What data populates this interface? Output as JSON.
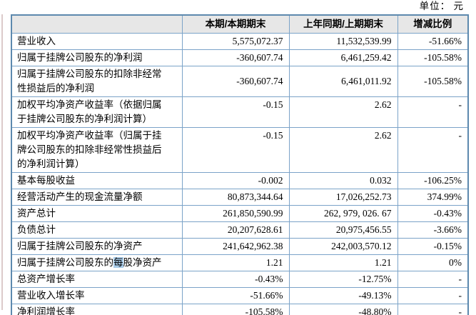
{
  "unit_label": "单位： 元",
  "table": {
    "headers": [
      "",
      "本期/本期期末",
      "上年同期/上期期末",
      "增减比例"
    ],
    "rows": [
      {
        "label": "营业收入",
        "current": "5,575,072.37",
        "prior": "11,532,539.99",
        "change": "-51.66%"
      },
      {
        "label": "归属于挂牌公司股东的净利润",
        "current": "-360,607.74",
        "prior": "6,461,259.42",
        "change": "-105.58%"
      },
      {
        "label": "归属于挂牌公司股东的扣除非经常性损益后的净利润",
        "current": "-360,607.74",
        "prior": "6,461,011.92",
        "change": "-105.58%"
      },
      {
        "label": "加权平均净资产收益率（依据归属于挂牌公司股东的净利润计算）",
        "current": "-0.15",
        "prior": "2.62",
        "change": "-"
      },
      {
        "label": "加权平均净资产收益率（归属于挂牌公司股东的扣除非经常性损益后的净利润计算）",
        "current": "-0.15",
        "prior": "2.62",
        "change": "-"
      },
      {
        "label": "基本每股收益",
        "current": "-0.002",
        "prior": "0.032",
        "change": "-106.25%"
      },
      {
        "label": "经营活动产生的现金流量净额",
        "current": "80,873,344.64",
        "prior": "17,026,252.73",
        "change": "374.99%"
      },
      {
        "label": "资产总计",
        "current": "261,850,590.99",
        "prior": "262, 979, 026. 67",
        "change": "-0.43%"
      },
      {
        "label": "负债总计",
        "current": "20,207,628.61",
        "prior": "20,975,456.55",
        "change": "-3.66%"
      },
      {
        "label": "归属于挂牌公司股东的净资产",
        "current": "241,642,962.38",
        "prior": "242,003,570.12",
        "change": "-0.15%"
      },
      {
        "label": "归属于挂牌公司股东的每股净资产",
        "highlight": "每",
        "current": "1.21",
        "prior": "1.21",
        "change": "0%"
      },
      {
        "label": "总资产增长率",
        "current": "-0.43%",
        "prior": "-12.75%",
        "change": "-"
      },
      {
        "label": "营业收入增长率",
        "current": "-51.66%",
        "prior": "-49.13%",
        "change": "-"
      },
      {
        "label": "净利润增长率",
        "current": "-105.58%",
        "prior": "-48.80%",
        "change": "-"
      }
    ]
  },
  "colors": {
    "border": "#7ba3c8",
    "outer_border": "#5d89ae",
    "header_bg": "#e7e7e7",
    "highlight_bg": "#a8cbe8"
  }
}
